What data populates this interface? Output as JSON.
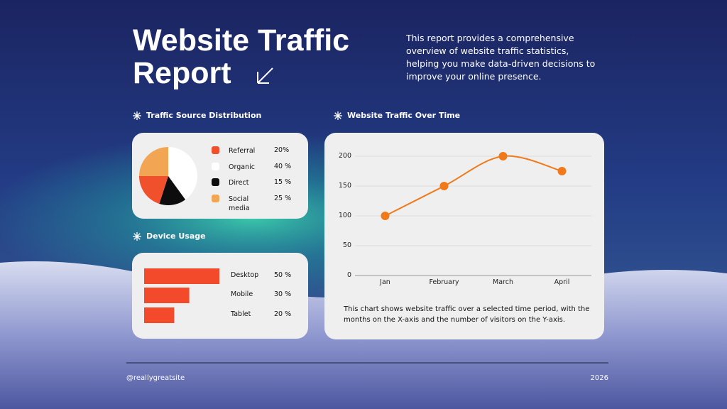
{
  "header": {
    "title": "Website Traffic Report",
    "description": "This report provides a comprehensive overview of website traffic statistics, helping you make data-driven decisions to improve your online presence."
  },
  "chart_data": [
    {
      "type": "pie",
      "title": "Traffic Source Distribution",
      "categories": [
        "Referral",
        "Organic",
        "Direct",
        "Social media"
      ],
      "values": [
        20,
        40,
        15,
        25
      ],
      "value_labels": [
        "20%",
        "40 %",
        "15 %",
        "25 %"
      ],
      "colors": [
        "#f0502c",
        "#ffffff",
        "#0d0d0d",
        "#f2a553"
      ]
    },
    {
      "type": "bar",
      "title": "Device Usage",
      "categories": [
        "Desktop",
        "Mobile",
        "Tablet"
      ],
      "values": [
        50,
        30,
        20
      ],
      "value_labels": [
        "50 %",
        "30 %",
        "20 %"
      ],
      "color": "#f24a2a"
    },
    {
      "type": "line",
      "title": "Website Traffic Over Time",
      "categories": [
        "Jan",
        "February",
        "March",
        "April"
      ],
      "values": [
        100,
        150,
        200,
        175
      ],
      "color": "#f07a1a",
      "ylim": [
        0,
        200
      ],
      "yticks": [
        0,
        50,
        100,
        150,
        200
      ],
      "grid": true,
      "caption": "This chart shows website traffic over a selected time period, with the months on the X-axis and the number of visitors on the Y-axis."
    }
  ],
  "footer": {
    "handle": "@reallygreatsite",
    "year": "2026"
  }
}
